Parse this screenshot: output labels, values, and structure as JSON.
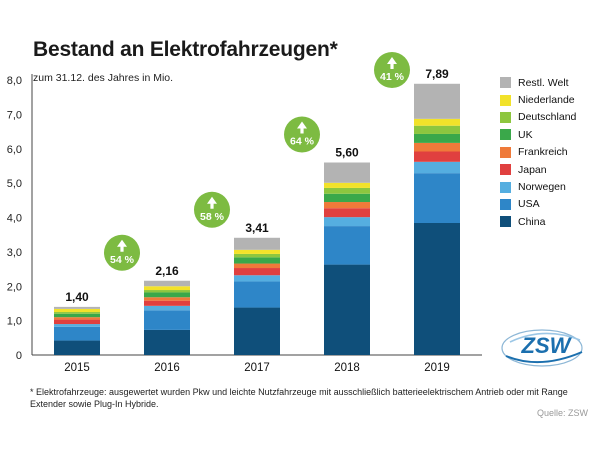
{
  "chart_data": {
    "type": "bar",
    "stacked": true,
    "title": "Bestand an Elektrofahrzeugen*",
    "subtitle": "zum 31.12. des Jahres in Mio.",
    "categories": [
      "2015",
      "2016",
      "2017",
      "2018",
      "2019"
    ],
    "ylim": [
      0,
      8
    ],
    "yticks": [
      "0",
      "1,0",
      "2,0",
      "3,0",
      "4,0",
      "5,0",
      "6,0",
      "7,0",
      "8,0"
    ],
    "totals": [
      "1,40",
      "2,16",
      "3,41",
      "5,60",
      "7,89"
    ],
    "growth": [
      "54 %",
      "58 %",
      "64 %",
      "41 %"
    ],
    "series": [
      {
        "name": "China",
        "color": "#0f4f7a",
        "values": [
          0.42,
          0.73,
          1.38,
          2.63,
          3.84
        ]
      },
      {
        "name": "USA",
        "color": "#2e86c8",
        "values": [
          0.4,
          0.57,
          0.76,
          1.12,
          1.45
        ]
      },
      {
        "name": "Norwegen",
        "color": "#55aee0",
        "values": [
          0.08,
          0.13,
          0.18,
          0.26,
          0.33
        ]
      },
      {
        "name": "Japan",
        "color": "#e0403f",
        "values": [
          0.13,
          0.15,
          0.21,
          0.26,
          0.3
        ]
      },
      {
        "name": "Frankreich",
        "color": "#ef7a3a",
        "values": [
          0.07,
          0.1,
          0.13,
          0.18,
          0.25
        ]
      },
      {
        "name": "UK",
        "color": "#3aa84a",
        "values": [
          0.1,
          0.14,
          0.18,
          0.24,
          0.26
        ]
      },
      {
        "name": "Deutschland",
        "color": "#8dc63f",
        "values": [
          0.05,
          0.07,
          0.1,
          0.17,
          0.24
        ]
      },
      {
        "name": "Niederlande",
        "color": "#f2e22a",
        "values": [
          0.09,
          0.11,
          0.12,
          0.15,
          0.2
        ]
      },
      {
        "name": "Restl. Welt",
        "color": "#b3b3b3",
        "values": [
          0.06,
          0.16,
          0.35,
          0.59,
          1.02
        ]
      }
    ],
    "legend_order": [
      "Restl. Welt",
      "Niederlande",
      "Deutschland",
      "UK",
      "Frankreich",
      "Japan",
      "Norwegen",
      "USA",
      "China"
    ]
  },
  "colors": {
    "growth_badge": "#7dbb42",
    "axis": "#444444",
    "logo_blue": "#1b6fae"
  },
  "logo_text": "ZSW",
  "footnote": "* Elektrofahrzeuge: ausgewertet wurden Pkw und leichte Nutzfahrzeuge mit ausschließlich batterieelektrischem Antrieb oder mit Range Extender sowie Plug-In Hybride.",
  "source": "Quelle: ZSW"
}
